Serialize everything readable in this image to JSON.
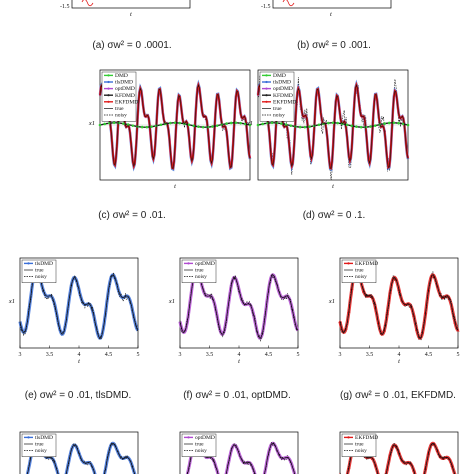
{
  "captions": {
    "a": "(a) σw² = 0 .0001.",
    "b": "(b) σw² = 0 .001.",
    "c": "(c) σw² = 0 .01.",
    "d": "(d) σw² = 0 .1.",
    "e": "(e) σw² = 0 .01, tlsDMD.",
    "f": "(f) σw² = 0 .01, optDMD.",
    "g": "(g) σw² = 0 .01, EKFDMD."
  },
  "colors": {
    "DMD": "#33cc33",
    "tlsDMD": "#3a6fd8",
    "optDMD": "#b04ad0",
    "KFDMD": "#222222",
    "EKFDMD": "#e01a1a",
    "true": "#111111",
    "noisy": "#111111"
  },
  "chart_data": [
    {
      "id": "a",
      "type": "line",
      "caption_key": "a",
      "xlabel": "t",
      "ylabel": "",
      "yticks": [
        "-1.5"
      ],
      "xlim": [
        3,
        5
      ],
      "ylim": [
        -1.6,
        1.6
      ]
    },
    {
      "id": "b",
      "type": "line",
      "caption_key": "b",
      "xlabel": "t",
      "ylabel": "",
      "yticks": [
        "-1.5"
      ],
      "xlim": [
        3,
        5
      ],
      "ylim": [
        -1.6,
        1.6
      ]
    },
    {
      "id": "c",
      "type": "line",
      "caption_key": "c",
      "xlabel": "t",
      "ylabel": "x1",
      "xlim": [
        0,
        5
      ],
      "ylim": [
        -2,
        2
      ],
      "legend": [
        "DMD",
        "tlsDMD",
        "optDMD",
        "KFDMD",
        "EKFDMD",
        "true",
        "noisy"
      ],
      "legend_position": "top-left",
      "noise": 0.15
    },
    {
      "id": "d",
      "type": "line",
      "caption_key": "d",
      "xlabel": "t",
      "ylabel": "x1",
      "xlim": [
        0,
        5
      ],
      "ylim": [
        -2,
        2
      ],
      "legend": [
        "DMD",
        "tlsDMD",
        "optDMD",
        "KFDMD",
        "EKFDMD",
        "true",
        "noisy"
      ],
      "legend_position": "top-left",
      "noise": 0.45
    },
    {
      "id": "e",
      "type": "line",
      "caption_key": "e",
      "xlabel": "t",
      "ylabel": "x1",
      "xticks": [
        "3",
        "3.5",
        "4",
        "4.5",
        "5"
      ],
      "xlim": [
        3,
        5
      ],
      "ylim": [
        -2,
        2
      ],
      "legend": [
        "tlsDMD",
        "true",
        "noisy"
      ],
      "legend_position": "top-left",
      "method": "tlsDMD",
      "noise": 0.15
    },
    {
      "id": "f",
      "type": "line",
      "caption_key": "f",
      "xlabel": "t",
      "ylabel": "x1",
      "xticks": [
        "3",
        "3.5",
        "4",
        "4.5",
        "5"
      ],
      "xlim": [
        3,
        5
      ],
      "ylim": [
        -2,
        2
      ],
      "legend": [
        "optDMD",
        "true",
        "noisy"
      ],
      "legend_position": "top-left",
      "method": "optDMD",
      "noise": 0.15
    },
    {
      "id": "g",
      "type": "line",
      "caption_key": "g",
      "xlabel": "t",
      "ylabel": "x1",
      "xticks": [
        "3",
        "3.5",
        "4",
        "4.5",
        "5"
      ],
      "xlim": [
        3,
        5
      ],
      "ylim": [
        -2,
        2
      ],
      "legend": [
        "EKFDMD",
        "true",
        "noisy"
      ],
      "legend_position": "top-left",
      "method": "EKFDMD",
      "noise": 0.15
    },
    {
      "id": "h",
      "type": "line",
      "legend": [
        "tlsDMD",
        "true",
        "noisy"
      ],
      "method": "tlsDMD"
    },
    {
      "id": "i",
      "type": "line",
      "legend": [
        "optDMD",
        "true",
        "noisy"
      ],
      "method": "optDMD"
    },
    {
      "id": "j",
      "type": "line",
      "legend": [
        "EKFDMD",
        "true",
        "noisy"
      ],
      "method": "EKFDMD"
    }
  ]
}
